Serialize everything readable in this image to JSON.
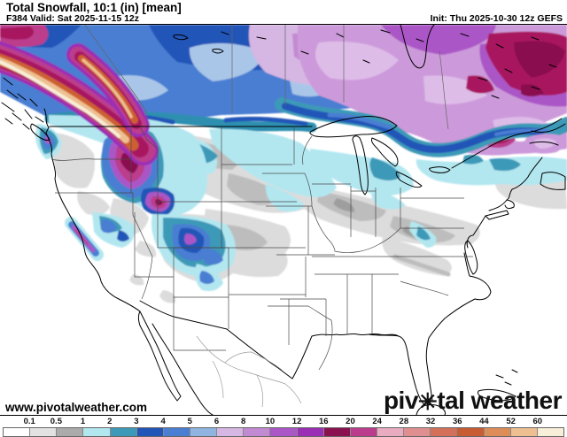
{
  "header": {
    "title": "Total Snowfall, 10:1 (in) [mean]",
    "subtitle": "F384 Valid: Sat 2025-11-15 12z",
    "init": "Init: Thu 2025-10-30 12z GEFS"
  },
  "map": {
    "watermark": "www.pivotalweather.com",
    "logo_left": "piv",
    "logo_gear_icon": "✳",
    "logo_right": "tal weather"
  },
  "colorbar": {
    "units": "in",
    "labels": [
      "0.1",
      "0.5",
      "1",
      "2",
      "3",
      "4",
      "5",
      "6",
      "8",
      "10",
      "12",
      "16",
      "20",
      "24",
      "28",
      "32",
      "36",
      "44",
      "52",
      "60"
    ],
    "colors": [
      "#ffffff",
      "#e2e2e2",
      "#ababab",
      "#b2e7f0",
      "#3d99b8",
      "#2155b8",
      "#4a7ed2",
      "#8fb4e0",
      "#d6b6e2",
      "#c28ad2",
      "#ab56c6",
      "#9a2fb6",
      "#8a1150",
      "#bb3c8c",
      "#e8abc0",
      "#e08f90",
      "#d4705a",
      "#c85c32",
      "#dd8e58",
      "#eebf90",
      "#f8efd8"
    ]
  }
}
